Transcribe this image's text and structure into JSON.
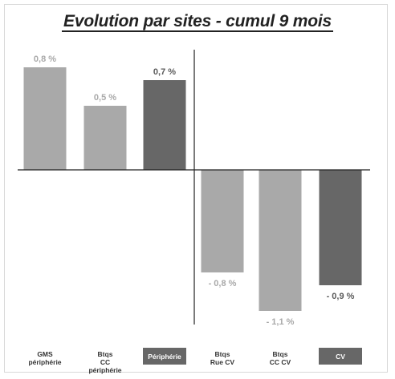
{
  "chart_data": {
    "type": "bar",
    "title": "Evolution par sites - cumul 9 mois",
    "categories": [
      "GMS\npériphérie",
      "Btqs\nCC périphérie",
      "Périphérie",
      "Btqs\nRue CV",
      "Btqs\nCC CV",
      "CV"
    ],
    "values": [
      0.8,
      0.5,
      0.7,
      -0.8,
      -1.1,
      -0.9
    ],
    "labels": [
      "0,8 %",
      "0,5 %",
      "0,7 %",
      "- 0,8 %",
      "- 1,1 %",
      "- 0,9 %"
    ],
    "ylim": [
      -1.2,
      0.85
    ],
    "grid": false,
    "legend": "none",
    "colors": {
      "light_bar": "#a9a9a9",
      "dark_bar": "#676767",
      "light_label": "#a9a9a9",
      "dark_label": "#5a5a5a",
      "axis": "#222222"
    },
    "bar_styles": [
      "light",
      "light",
      "dark",
      "light",
      "light",
      "dark"
    ]
  }
}
